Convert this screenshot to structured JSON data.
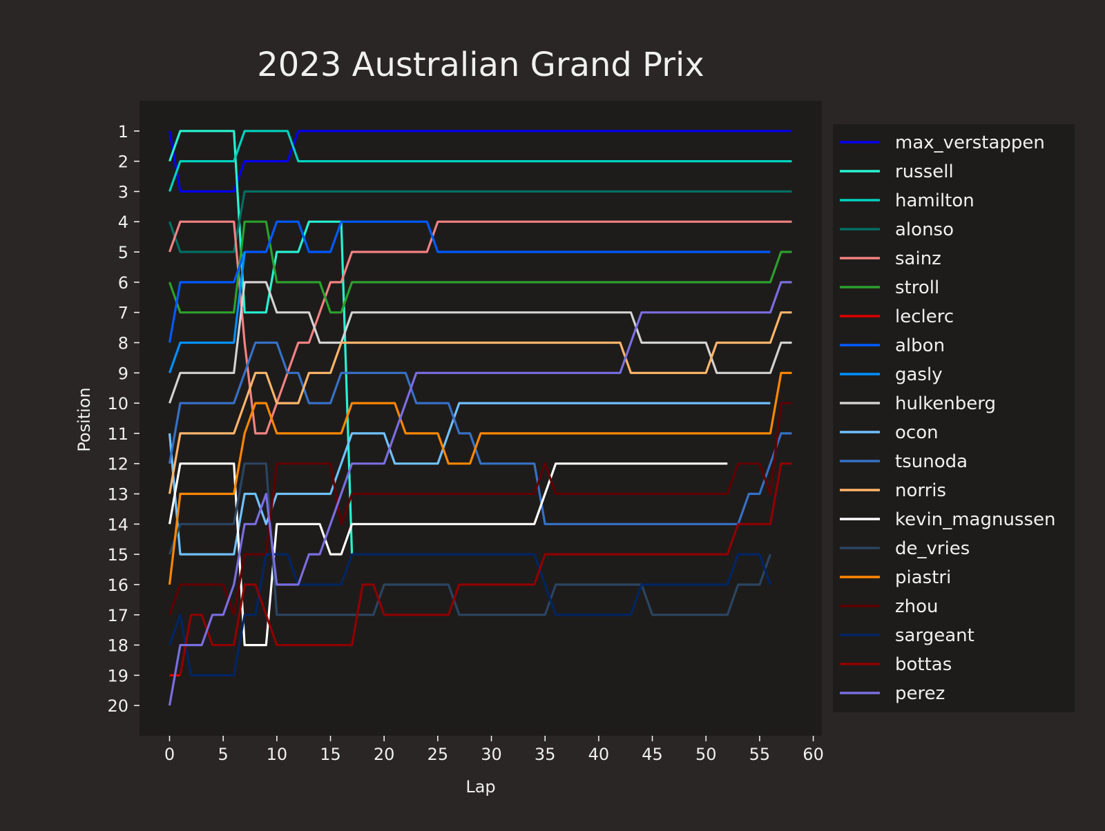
{
  "chart_data": {
    "type": "line",
    "title": "2023 Australian Grand Prix",
    "xlabel": "Lap",
    "ylabel": "Position",
    "xlim": [
      -2.8,
      60.8
    ],
    "ylim": [
      21,
      0
    ],
    "xticks": [
      0,
      5,
      10,
      15,
      20,
      25,
      30,
      35,
      40,
      45,
      50,
      55,
      60
    ],
    "yticks": [
      1,
      2,
      3,
      4,
      5,
      6,
      7,
      8,
      9,
      10,
      11,
      12,
      13,
      14,
      15,
      16,
      17,
      18,
      19,
      20
    ],
    "y_inverted": true,
    "grid": false,
    "legend_placement": "right outside",
    "colors": {
      "figure_bg": "#292625",
      "axes_bg": "#1e1c1b",
      "legend_bg": "#1e1c1b",
      "text": "#f0f0f0"
    },
    "series": [
      {
        "name": "max_verstappen",
        "color": "#0600ef",
        "points": [
          [
            0,
            1
          ],
          [
            1,
            3
          ],
          [
            6,
            3
          ],
          [
            7,
            2
          ],
          [
            11,
            2
          ],
          [
            12,
            1
          ],
          [
            58,
            1
          ]
        ]
      },
      {
        "name": "russell",
        "color": "#27f4d2",
        "points": [
          [
            0,
            2
          ],
          [
            1,
            1
          ],
          [
            6,
            1
          ],
          [
            7,
            7
          ],
          [
            9,
            7
          ],
          [
            10,
            5
          ],
          [
            12,
            5
          ],
          [
            13,
            4
          ],
          [
            16,
            4
          ],
          [
            17,
            15
          ]
        ]
      },
      {
        "name": "hamilton",
        "color": "#00d2be",
        "points": [
          [
            0,
            3
          ],
          [
            1,
            2
          ],
          [
            6,
            2
          ],
          [
            7,
            1
          ],
          [
            11,
            1
          ],
          [
            12,
            2
          ],
          [
            58,
            2
          ]
        ]
      },
      {
        "name": "alonso",
        "color": "#006f62",
        "points": [
          [
            0,
            4
          ],
          [
            1,
            5
          ],
          [
            6,
            5
          ],
          [
            7,
            3
          ],
          [
            58,
            3
          ]
        ]
      },
      {
        "name": "sainz",
        "color": "#f48282",
        "points": [
          [
            0,
            5
          ],
          [
            1,
            4
          ],
          [
            6,
            4
          ],
          [
            7,
            8
          ],
          [
            8,
            11
          ],
          [
            9,
            11
          ],
          [
            10,
            10
          ],
          [
            12,
            8
          ],
          [
            13,
            8
          ],
          [
            15,
            6
          ],
          [
            16,
            6
          ],
          [
            17,
            5
          ],
          [
            24,
            5
          ],
          [
            25,
            4
          ],
          [
            58,
            4
          ]
        ]
      },
      {
        "name": "stroll",
        "color": "#2ca02c",
        "points": [
          [
            0,
            6
          ],
          [
            1,
            7
          ],
          [
            6,
            7
          ],
          [
            7,
            4
          ],
          [
            9,
            4
          ],
          [
            10,
            6
          ],
          [
            14,
            6
          ],
          [
            15,
            7
          ],
          [
            16,
            7
          ],
          [
            17,
            6
          ],
          [
            56,
            6
          ],
          [
            57,
            5
          ],
          [
            58,
            5
          ]
        ]
      },
      {
        "name": "leclerc",
        "color": "#dc0000",
        "points": [
          [
            0,
            19
          ],
          [
            1,
            19
          ]
        ]
      },
      {
        "name": "albon",
        "color": "#005aff",
        "points": [
          [
            0,
            8
          ],
          [
            1,
            6
          ],
          [
            6,
            6
          ],
          [
            7,
            5
          ],
          [
            9,
            5
          ],
          [
            10,
            4
          ],
          [
            12,
            4
          ],
          [
            13,
            5
          ],
          [
            15,
            5
          ],
          [
            16,
            4
          ],
          [
            24,
            4
          ],
          [
            25,
            5
          ],
          [
            56,
            5
          ]
        ]
      },
      {
        "name": "gasly",
        "color": "#0090ff",
        "points": [
          [
            0,
            9
          ],
          [
            1,
            8
          ],
          [
            6,
            8
          ],
          [
            7,
            5
          ]
        ]
      },
      {
        "name": "hulkenberg",
        "color": "#d2d2d2",
        "points": [
          [
            0,
            10
          ],
          [
            1,
            9
          ],
          [
            6,
            9
          ],
          [
            7,
            6
          ],
          [
            9,
            6
          ],
          [
            10,
            7
          ],
          [
            13,
            7
          ],
          [
            14,
            8
          ],
          [
            16,
            8
          ],
          [
            17,
            7
          ],
          [
            43,
            7
          ],
          [
            44,
            8
          ],
          [
            50,
            8
          ],
          [
            51,
            9
          ],
          [
            56,
            9
          ],
          [
            57,
            8
          ],
          [
            58,
            8
          ]
        ]
      },
      {
        "name": "ocon",
        "color": "#70c2ff",
        "points": [
          [
            0,
            11
          ],
          [
            1,
            15
          ],
          [
            6,
            15
          ],
          [
            7,
            13
          ],
          [
            8,
            13
          ],
          [
            9,
            14
          ],
          [
            10,
            13
          ],
          [
            15,
            13
          ],
          [
            17,
            11
          ],
          [
            20,
            11
          ],
          [
            21,
            12
          ],
          [
            25,
            12
          ],
          [
            27,
            10
          ],
          [
            56,
            10
          ]
        ]
      },
      {
        "name": "tsunoda",
        "color": "#3671c6",
        "points": [
          [
            0,
            12
          ],
          [
            1,
            10
          ],
          [
            6,
            10
          ],
          [
            8,
            8
          ],
          [
            10,
            8
          ],
          [
            11,
            9
          ],
          [
            12,
            9
          ],
          [
            13,
            10
          ],
          [
            15,
            10
          ],
          [
            16,
            9
          ],
          [
            22,
            9
          ],
          [
            23,
            10
          ],
          [
            26,
            10
          ],
          [
            27,
            11
          ],
          [
            28,
            11
          ],
          [
            29,
            12
          ],
          [
            34,
            12
          ],
          [
            35,
            14
          ],
          [
            53,
            14
          ],
          [
            54,
            13
          ],
          [
            55,
            13
          ],
          [
            57,
            11
          ],
          [
            58,
            11
          ]
        ]
      },
      {
        "name": "norris",
        "color": "#ffb56b",
        "points": [
          [
            0,
            13
          ],
          [
            1,
            11
          ],
          [
            6,
            11
          ],
          [
            8,
            9
          ],
          [
            9,
            9
          ],
          [
            10,
            10
          ],
          [
            12,
            10
          ],
          [
            13,
            9
          ],
          [
            15,
            9
          ],
          [
            16,
            8
          ],
          [
            42,
            8
          ],
          [
            43,
            9
          ],
          [
            50,
            9
          ],
          [
            51,
            8
          ],
          [
            56,
            8
          ],
          [
            57,
            7
          ],
          [
            58,
            7
          ]
        ]
      },
      {
        "name": "kevin_magnussen",
        "color": "#ffffff",
        "points": [
          [
            0,
            14
          ],
          [
            1,
            12
          ],
          [
            6,
            12
          ],
          [
            7,
            18
          ],
          [
            9,
            18
          ],
          [
            10,
            14
          ],
          [
            14,
            14
          ],
          [
            15,
            15
          ],
          [
            16,
            15
          ],
          [
            17,
            14
          ],
          [
            34,
            14
          ],
          [
            36,
            12
          ],
          [
            52,
            12
          ]
        ]
      },
      {
        "name": "de_vries",
        "color": "#2b4562",
        "points": [
          [
            0,
            15
          ],
          [
            1,
            14
          ],
          [
            6,
            14
          ],
          [
            7,
            12
          ],
          [
            9,
            12
          ],
          [
            10,
            17
          ],
          [
            19,
            17
          ],
          [
            20,
            16
          ],
          [
            26,
            16
          ],
          [
            27,
            17
          ],
          [
            35,
            17
          ],
          [
            36,
            16
          ],
          [
            44,
            16
          ],
          [
            45,
            17
          ],
          [
            52,
            17
          ],
          [
            53,
            16
          ],
          [
            55,
            16
          ],
          [
            56,
            15
          ]
        ]
      },
      {
        "name": "piastri",
        "color": "#ff8700",
        "points": [
          [
            0,
            16
          ],
          [
            1,
            13
          ],
          [
            6,
            13
          ],
          [
            7,
            11
          ],
          [
            8,
            10
          ],
          [
            9,
            10
          ],
          [
            10,
            11
          ],
          [
            16,
            11
          ],
          [
            17,
            10
          ],
          [
            21,
            10
          ],
          [
            22,
            11
          ],
          [
            25,
            11
          ],
          [
            26,
            12
          ],
          [
            28,
            12
          ],
          [
            29,
            11
          ],
          [
            56,
            11
          ],
          [
            57,
            9
          ],
          [
            58,
            9
          ]
        ]
      },
      {
        "name": "zhou",
        "color": "#600000",
        "points": [
          [
            0,
            17
          ],
          [
            1,
            16
          ],
          [
            5,
            16
          ],
          [
            6,
            17
          ],
          [
            7,
            15
          ],
          [
            9,
            15
          ],
          [
            10,
            12
          ],
          [
            15,
            12
          ],
          [
            16,
            14
          ],
          [
            17,
            13
          ],
          [
            34,
            13
          ],
          [
            35,
            12
          ],
          [
            36,
            13
          ],
          [
            52,
            13
          ],
          [
            53,
            12
          ],
          [
            55,
            12
          ],
          [
            56,
            13
          ],
          [
            57,
            10
          ],
          [
            58,
            10
          ]
        ]
      },
      {
        "name": "sargeant",
        "color": "#012564",
        "points": [
          [
            0,
            18
          ],
          [
            1,
            17
          ],
          [
            2,
            19
          ],
          [
            6,
            19
          ],
          [
            7,
            17
          ],
          [
            8,
            17
          ],
          [
            9,
            15
          ],
          [
            11,
            15
          ],
          [
            12,
            16
          ],
          [
            16,
            16
          ],
          [
            17,
            15
          ],
          [
            34,
            15
          ],
          [
            35,
            16
          ],
          [
            36,
            17
          ],
          [
            43,
            17
          ],
          [
            44,
            16
          ],
          [
            52,
            16
          ],
          [
            53,
            15
          ],
          [
            55,
            15
          ],
          [
            56,
            16
          ]
        ]
      },
      {
        "name": "bottas",
        "color": "#900000",
        "points": [
          [
            1,
            19
          ],
          [
            2,
            17
          ],
          [
            3,
            17
          ],
          [
            4,
            18
          ],
          [
            6,
            18
          ],
          [
            7,
            16
          ],
          [
            8,
            16
          ],
          [
            10,
            18
          ],
          [
            17,
            18
          ],
          [
            18,
            16
          ],
          [
            19,
            16
          ],
          [
            20,
            17
          ],
          [
            26,
            17
          ],
          [
            27,
            16
          ],
          [
            34,
            16
          ],
          [
            35,
            15
          ],
          [
            52,
            15
          ],
          [
            53,
            14
          ],
          [
            56,
            14
          ],
          [
            57,
            12
          ],
          [
            58,
            12
          ]
        ]
      },
      {
        "name": "perez",
        "color": "#7a6ee0",
        "points": [
          [
            0,
            20
          ],
          [
            1,
            18
          ],
          [
            3,
            18
          ],
          [
            4,
            17
          ],
          [
            5,
            17
          ],
          [
            6,
            16
          ],
          [
            7,
            14
          ],
          [
            8,
            14
          ],
          [
            9,
            13
          ],
          [
            10,
            16
          ],
          [
            12,
            16
          ],
          [
            13,
            15
          ],
          [
            14,
            15
          ],
          [
            17,
            12
          ],
          [
            20,
            12
          ],
          [
            23,
            9
          ],
          [
            42,
            9
          ],
          [
            44,
            7
          ],
          [
            56,
            7
          ],
          [
            57,
            6
          ],
          [
            58,
            6
          ]
        ]
      }
    ]
  }
}
